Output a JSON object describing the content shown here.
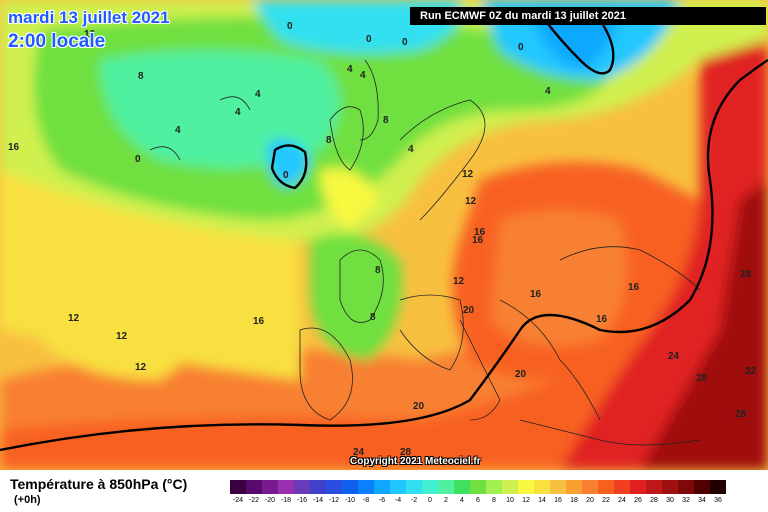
{
  "header": {
    "date_title": "mardi 13 juillet 2021",
    "time_title": "2:00 locale",
    "run_info": "Run ECMWF 0Z du mardi 13 juillet 2021"
  },
  "copyright": "Copyright 2021 Meteociel.fr",
  "footer": {
    "title": "Température à 850hPa (°C)",
    "subtitle": "(+0h)"
  },
  "colors": {
    "accent_title": "#1e5cff",
    "zero_isotherm": "#000000",
    "twenty_isotherm": "#000000"
  },
  "scale": {
    "labels": [
      "-24",
      "-22",
      "-20",
      "-18",
      "-16",
      "-14",
      "-12",
      "-10",
      "-8",
      "-6",
      "-4",
      "-2",
      "0",
      "2",
      "4",
      "6",
      "8",
      "10",
      "12",
      "14",
      "16",
      "18",
      "20",
      "22",
      "24",
      "26",
      "28",
      "30",
      "32",
      "34",
      "36"
    ],
    "colors": [
      "#3a0040",
      "#5a0a6a",
      "#7a1a90",
      "#9a30b0",
      "#6a3ab8",
      "#4040c8",
      "#2a4ee0",
      "#1060f0",
      "#0a80ff",
      "#10a8ff",
      "#20c8ff",
      "#30e0f0",
      "#40f0d0",
      "#50f0a0",
      "#40e060",
      "#70e040",
      "#a0f050",
      "#d0f050",
      "#f8f840",
      "#f8e040",
      "#f8c040",
      "#f8a030",
      "#f88030",
      "#f86020",
      "#f04020",
      "#e02020",
      "#c01818",
      "#a01010",
      "#800808",
      "#500000",
      "#200000"
    ]
  },
  "map_labels": [
    {
      "text": "16"
    },
    {
      "text": "16"
    },
    {
      "text": "8"
    },
    {
      "text": "4"
    },
    {
      "text": "0"
    },
    {
      "text": "4"
    },
    {
      "text": "4"
    },
    {
      "text": "0"
    },
    {
      "text": "0"
    },
    {
      "text": "0"
    },
    {
      "text": "4"
    },
    {
      "text": "4"
    },
    {
      "text": "0"
    },
    {
      "text": "4"
    },
    {
      "text": "8"
    },
    {
      "text": "8"
    },
    {
      "text": "4"
    },
    {
      "text": "12"
    },
    {
      "text": "12"
    },
    {
      "text": "16"
    },
    {
      "text": "8"
    },
    {
      "text": "12"
    },
    {
      "text": "12"
    },
    {
      "text": "16"
    },
    {
      "text": "16"
    },
    {
      "text": "12"
    },
    {
      "text": "16"
    },
    {
      "text": "20"
    },
    {
      "text": "16"
    },
    {
      "text": "16"
    },
    {
      "text": "28"
    },
    {
      "text": "24"
    },
    {
      "text": "32"
    },
    {
      "text": "28"
    },
    {
      "text": "28"
    },
    {
      "text": "20"
    },
    {
      "text": "20"
    },
    {
      "text": "24"
    },
    {
      "text": "28"
    },
    {
      "text": "12"
    },
    {
      "text": "8"
    },
    {
      "text": "0"
    }
  ]
}
